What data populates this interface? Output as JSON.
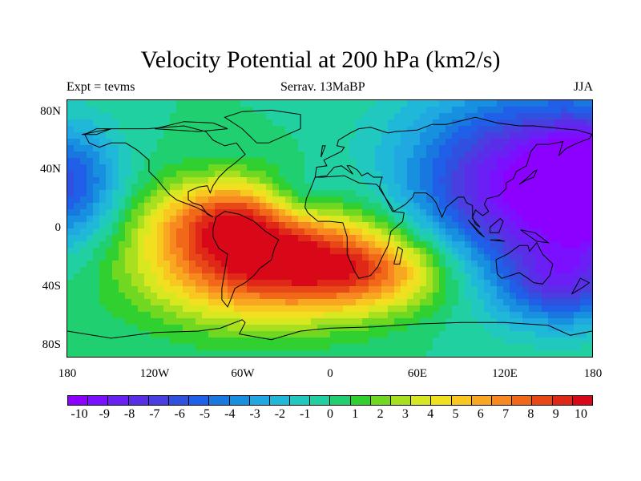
{
  "title": "Velocity Potential at 200 hPa (km2/s)",
  "subtitle_left": "Expt = tevms",
  "subtitle_center": "Serrav.  13MaBP",
  "subtitle_right": "JJA",
  "lat_labels": [
    "80N",
    "40N",
    "0",
    "40S",
    "80S"
  ],
  "lon_labels": [
    "180",
    "120W",
    "60W",
    "0",
    "60E",
    "120E",
    "180"
  ],
  "colorbar": {
    "labels": [
      "-10",
      "-9",
      "-8",
      "-7",
      "-6",
      "-5",
      "-4",
      "-3",
      "-2",
      "-1",
      "0",
      "1",
      "2",
      "3",
      "4",
      "5",
      "6",
      "7",
      "8",
      "9",
      "10"
    ],
    "colors": [
      "#8b00ff",
      "#7a10ff",
      "#6a20f5",
      "#5a2ee8",
      "#4a3ee0",
      "#3050e0",
      "#2060e8",
      "#1878e0",
      "#1890e0",
      "#20a8e0",
      "#20b8d8",
      "#20c8c0",
      "#20d0a0",
      "#20d070",
      "#30d030",
      "#70d820",
      "#a8e020",
      "#d8e820",
      "#f0e020",
      "#f8c820",
      "#f8a820",
      "#f88820",
      "#f06818",
      "#e84818",
      "#e02818",
      "#d80818"
    ]
  },
  "map": {
    "fields": [
      {
        "lon": -50,
        "lat": -20,
        "amp": 10,
        "sx": 55,
        "sy": 30
      },
      {
        "lon": 30,
        "lat": -30,
        "amp": 6,
        "sx": 40,
        "sy": 20
      },
      {
        "lon": -70,
        "lat": 10,
        "amp": 4,
        "sx": 35,
        "sy": 18
      },
      {
        "lon": 140,
        "lat": 30,
        "amp": -10,
        "sx": 60,
        "sy": 45
      },
      {
        "lon": 160,
        "lat": -40,
        "amp": -5,
        "sx": 30,
        "sy": 20
      },
      {
        "lon": -180,
        "lat": 30,
        "amp": -6,
        "sx": 25,
        "sy": 30
      },
      {
        "lon": 180,
        "lat": 30,
        "amp": -6,
        "sx": 25,
        "sy": 30
      },
      {
        "lon": -20,
        "lat": 20,
        "amp": -3,
        "sx": 20,
        "sy": 15
      }
    ]
  }
}
